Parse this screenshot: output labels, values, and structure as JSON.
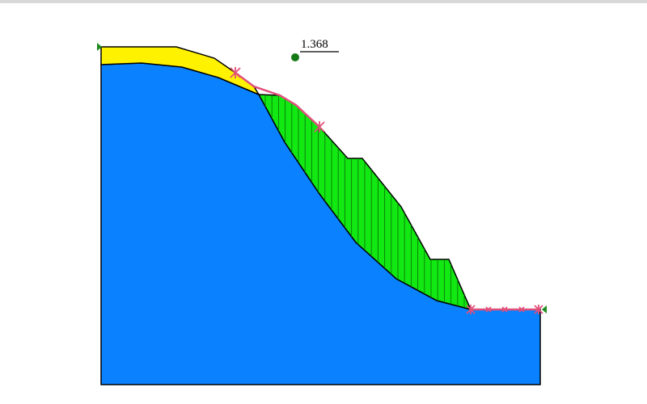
{
  "figure": {
    "factor_of_safety": "1.368",
    "colors": {
      "background": "#ffffff",
      "bedrock": "#0a82ff",
      "weak_layer": "#fff200",
      "sliding_mass": "#12e812",
      "slice_lines": "#0a7a0a",
      "outline": "#000000",
      "surface_marker": "#e0507a",
      "center_point": "#157a15",
      "support_marker": "#1f8a1f",
      "top_strip": "#d8d8d8"
    },
    "icons": {
      "slip_center": "circle-dot",
      "ground_point": "cross-mark",
      "boundary_support": "triangle-marker"
    }
  }
}
